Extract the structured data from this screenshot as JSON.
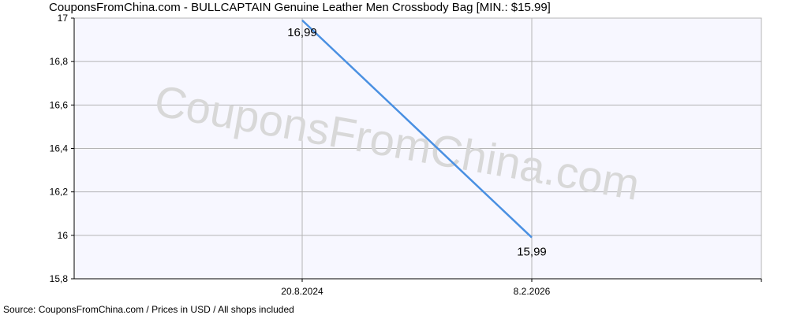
{
  "title": "CouponsFromChina.com - BULLCAPTAIN Genuine Leather Men Crossbody Bag [MIN.: $15.99]",
  "source_note": "Source: CouponsFromChina.com / Prices in USD / All shops included",
  "watermark": "CouponsFromChina.com",
  "colors": {
    "line": "#4a90e2",
    "grid": "#b4b4b4",
    "plot_bg": "#f7f7ff",
    "axis": "#000000"
  },
  "chart_data": {
    "type": "line",
    "title": "CouponsFromChina.com - BULLCAPTAIN Genuine Leather Men Crossbody Bag [MIN.: $15.99]",
    "xlabel": "",
    "ylabel": "",
    "ylim": [
      15.8,
      17
    ],
    "yticks": [
      "15,8",
      "16",
      "16,2",
      "16,4",
      "16,6",
      "16,8",
      "17"
    ],
    "yticks_values": [
      15.8,
      16.0,
      16.2,
      16.4,
      16.6,
      16.8,
      17.0
    ],
    "x": [
      "20.8.2024",
      "8.2.2026"
    ],
    "series": [
      {
        "values": [
          16.99,
          15.99
        ],
        "labels": [
          "16,99",
          "15,99"
        ]
      }
    ],
    "grid": true,
    "legend": "none"
  }
}
